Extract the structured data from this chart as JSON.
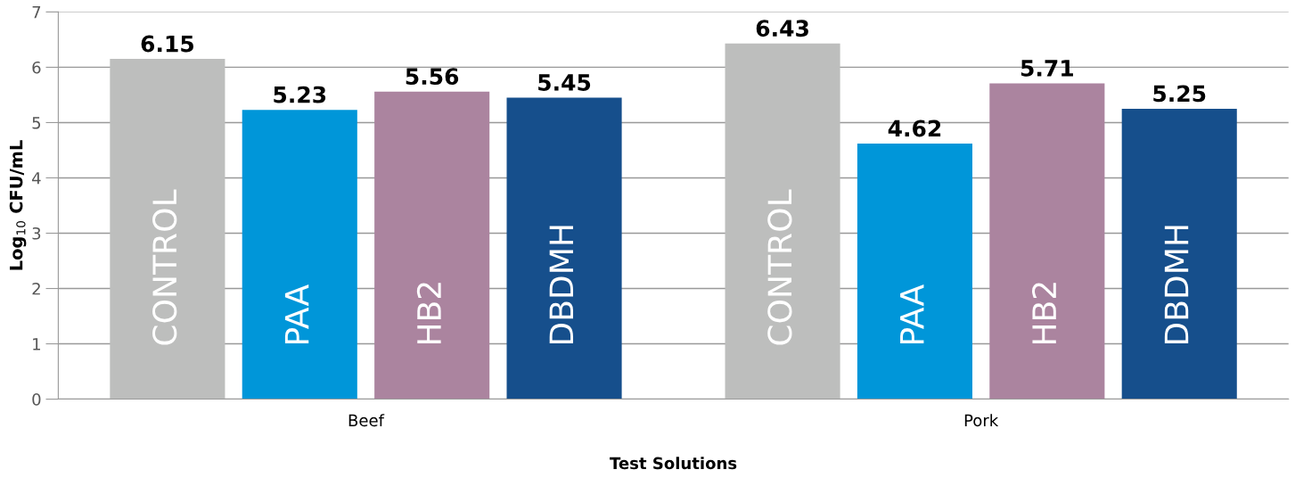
{
  "chart_data": {
    "type": "bar",
    "xlabel": "Test Solutions",
    "ylabel": "Log$_{10}$ CFU/mL",
    "categories": [
      "Beef",
      "Pork"
    ],
    "series": [
      {
        "name": "CONTROL",
        "color": "#bdbebd",
        "values": [
          6.15,
          6.43
        ]
      },
      {
        "name": "PAA",
        "color": "#0096d9",
        "values": [
          5.23,
          4.62
        ]
      },
      {
        "name": "HB2",
        "color": "#ab849f",
        "values": [
          5.56,
          5.71
        ]
      },
      {
        "name": "DBDMH",
        "color": "#164f8c",
        "values": [
          5.45,
          5.25
        ]
      }
    ],
    "ylim": [
      0,
      7
    ],
    "yticks": [
      0,
      1,
      2,
      3,
      4,
      5,
      6,
      7
    ],
    "grid": "y",
    "data_labels": true
  }
}
